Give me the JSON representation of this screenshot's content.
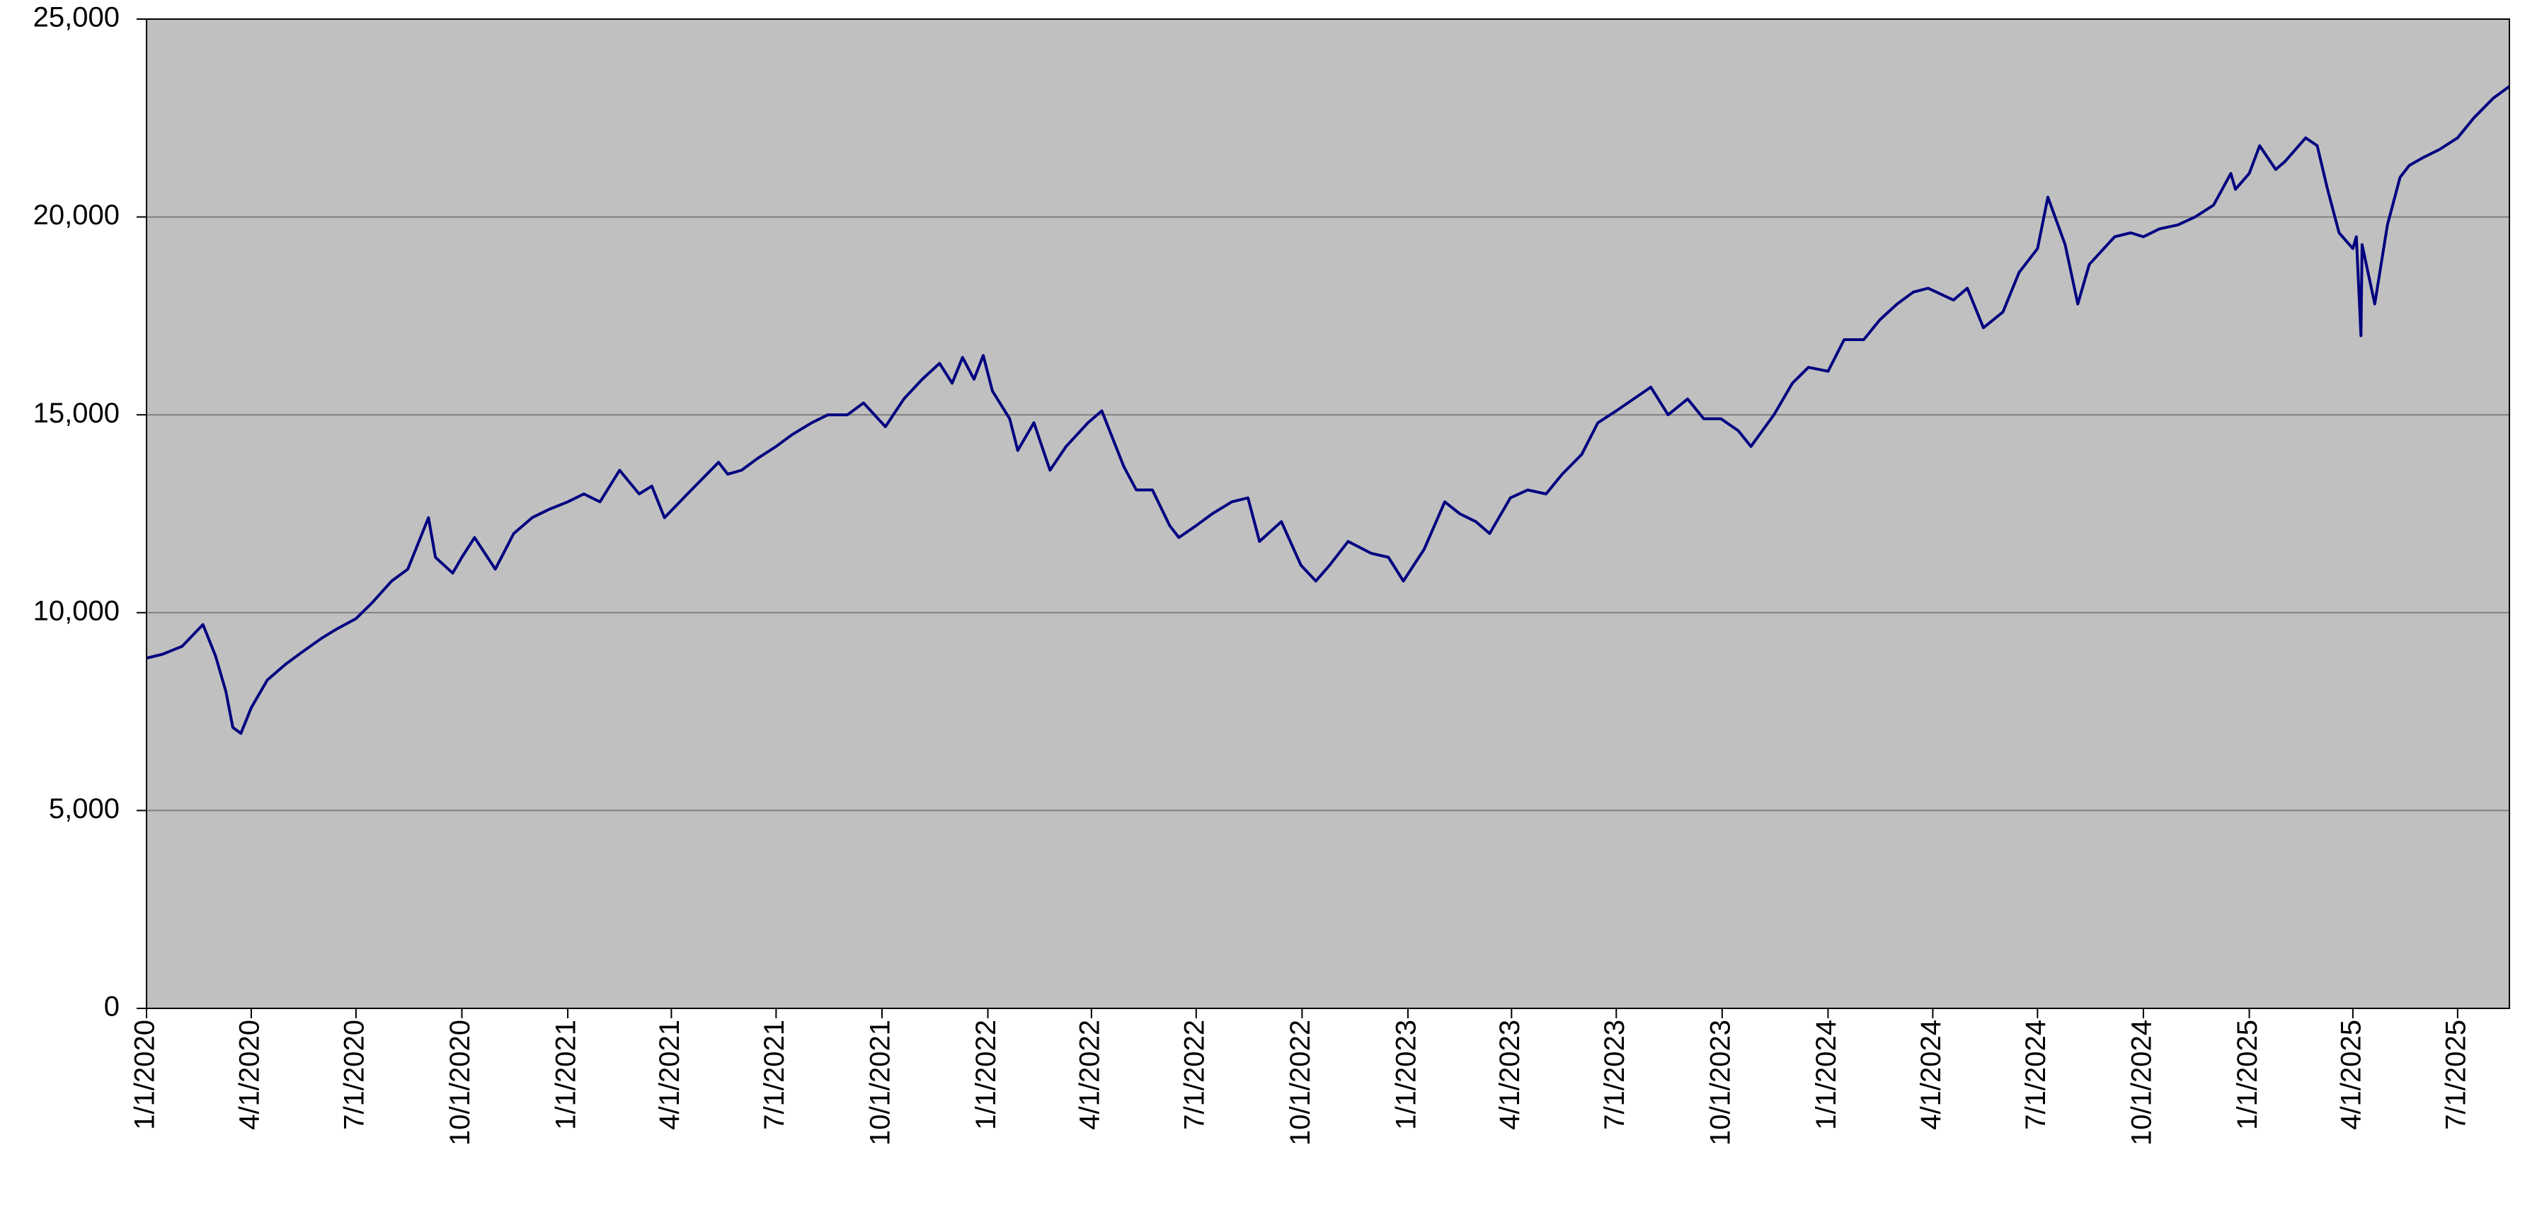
{
  "chart_data": {
    "type": "line",
    "title": "",
    "xlabel": "",
    "ylabel": "",
    "x_range": [
      "1/1/2020",
      "8/15/2025"
    ],
    "ylim": [
      0,
      25000
    ],
    "grid": {
      "horizontal": true,
      "vertical": false
    },
    "legend": "none",
    "colors": {
      "plot_background": "#c0c0c0",
      "line": "#000080",
      "gridline": "#808080",
      "axis": "#000000"
    },
    "y_ticks": [
      0,
      5000,
      10000,
      15000,
      20000,
      25000
    ],
    "y_tick_labels": [
      "0",
      "5,000",
      "10,000",
      "15,000",
      "20,000",
      "25,000"
    ],
    "x_ticks": [
      "2020-01-01",
      "2020-04-01",
      "2020-07-01",
      "2020-10-01",
      "2021-01-01",
      "2021-04-01",
      "2021-07-01",
      "2021-10-01",
      "2022-01-01",
      "2022-04-01",
      "2022-07-01",
      "2022-10-01",
      "2023-01-01",
      "2023-04-01",
      "2023-07-01",
      "2023-10-01",
      "2024-01-01",
      "2024-04-01",
      "2024-07-01",
      "2024-10-01",
      "2025-01-01",
      "2025-04-01",
      "2025-07-01"
    ],
    "x_tick_labels": [
      "1/1/2020",
      "4/1/2020",
      "7/1/2020",
      "10/1/2020",
      "1/1/2021",
      "4/1/2021",
      "7/1/2021",
      "10/1/2021",
      "1/1/2022",
      "4/1/2022",
      "7/1/2022",
      "10/1/2022",
      "1/1/2023",
      "4/1/2023",
      "7/1/2023",
      "10/1/2023",
      "1/1/2024",
      "4/1/2024",
      "7/1/2024",
      "10/1/2024",
      "1/1/2025",
      "4/1/2025",
      "7/1/2025"
    ],
    "series": [
      {
        "x": [
          "2020-01-01",
          "2020-01-15",
          "2020-02-01",
          "2020-02-19",
          "2020-03-01",
          "2020-03-10",
          "2020-03-16",
          "2020-03-23",
          "2020-04-01",
          "2020-04-15",
          "2020-05-01",
          "2020-05-15",
          "2020-06-01",
          "2020-06-15",
          "2020-07-01",
          "2020-07-15",
          "2020-08-01",
          "2020-08-15",
          "2020-09-02",
          "2020-09-08",
          "2020-09-23",
          "2020-10-01",
          "2020-10-12",
          "2020-10-30",
          "2020-11-15",
          "2020-12-01",
          "2020-12-15",
          "2021-01-01",
          "2021-01-15",
          "2021-01-29",
          "2021-02-15",
          "2021-03-04",
          "2021-03-15",
          "2021-03-26",
          "2021-04-15",
          "2021-05-12",
          "2021-05-20",
          "2021-06-01",
          "2021-06-15",
          "2021-07-01",
          "2021-07-15",
          "2021-08-01",
          "2021-08-15",
          "2021-09-01",
          "2021-09-15",
          "2021-10-04",
          "2021-10-20",
          "2021-11-05",
          "2021-11-20",
          "2021-12-01",
          "2021-12-10",
          "2021-12-20",
          "2021-12-28",
          "2022-01-05",
          "2022-01-20",
          "2022-01-27",
          "2022-02-10",
          "2022-02-24",
          "2022-03-10",
          "2022-03-29",
          "2022-04-10",
          "2022-04-29",
          "2022-05-10",
          "2022-05-24",
          "2022-06-08",
          "2022-06-16",
          "2022-07-01",
          "2022-07-15",
          "2022-08-01",
          "2022-08-15",
          "2022-08-25",
          "2022-09-13",
          "2022-09-30",
          "2022-10-13",
          "2022-10-25",
          "2022-11-10",
          "2022-11-30",
          "2022-12-15",
          "2022-12-28",
          "2023-01-15",
          "2023-02-02",
          "2023-02-15",
          "2023-03-01",
          "2023-03-13",
          "2023-03-31",
          "2023-04-15",
          "2023-05-01",
          "2023-05-15",
          "2023-06-01",
          "2023-06-15",
          "2023-07-01",
          "2023-07-31",
          "2023-08-15",
          "2023-09-01",
          "2023-09-15",
          "2023-09-30",
          "2023-10-15",
          "2023-10-26",
          "2023-11-15",
          "2023-12-01",
          "2023-12-15",
          "2024-01-01",
          "2024-01-15",
          "2024-02-01",
          "2024-02-15",
          "2024-03-01",
          "2024-03-15",
          "2024-03-28",
          "2024-04-19",
          "2024-05-01",
          "2024-05-15",
          "2024-06-01",
          "2024-06-15",
          "2024-07-01",
          "2024-07-10",
          "2024-07-25",
          "2024-08-05",
          "2024-08-15",
          "2024-09-06",
          "2024-09-20",
          "2024-10-01",
          "2024-10-15",
          "2024-10-31",
          "2024-11-15",
          "2024-12-01",
          "2024-12-16",
          "2024-12-20",
          "2025-01-01",
          "2025-01-10",
          "2025-01-24",
          "2025-02-01",
          "2025-02-19",
          "2025-03-01",
          "2025-03-10",
          "2025-03-20",
          "2025-04-01",
          "2025-04-04",
          "2025-04-08",
          "2025-04-09",
          "2025-04-20",
          "2025-05-01",
          "2025-05-12",
          "2025-05-20",
          "2025-06-01",
          "2025-06-15",
          "2025-07-01",
          "2025-07-15",
          "2025-08-01",
          "2025-08-15"
        ],
        "values": [
          8850,
          8950,
          9150,
          9700,
          8900,
          8000,
          7100,
          6950,
          7600,
          8300,
          8700,
          9000,
          9350,
          9600,
          9850,
          10250,
          10800,
          11100,
          12400,
          11400,
          11000,
          11400,
          11900,
          11100,
          12000,
          12400,
          12600,
          12800,
          13000,
          12800,
          13600,
          13000,
          13200,
          12400,
          13000,
          13800,
          13500,
          13600,
          13900,
          14200,
          14500,
          14800,
          15000,
          15000,
          15300,
          14700,
          15400,
          15900,
          16300,
          15800,
          16450,
          15900,
          16500,
          15600,
          14900,
          14100,
          14800,
          13600,
          14200,
          14800,
          15100,
          13700,
          13100,
          13100,
          12200,
          11900,
          12200,
          12500,
          12800,
          12900,
          11800,
          12300,
          11200,
          10800,
          11200,
          11800,
          11500,
          11400,
          10800,
          11600,
          12800,
          12500,
          12300,
          12000,
          12900,
          13100,
          13000,
          13500,
          14000,
          14800,
          15100,
          15700,
          15000,
          15400,
          14900,
          14900,
          14600,
          14200,
          15000,
          15800,
          16200,
          16100,
          16900,
          16900,
          17400,
          17800,
          18100,
          18200,
          17900,
          18200,
          17200,
          17600,
          18600,
          19200,
          20500,
          19300,
          17800,
          18800,
          19500,
          19600,
          19500,
          19700,
          19800,
          20000,
          20300,
          21100,
          20700,
          21100,
          21800,
          21200,
          21400,
          22000,
          21800,
          20700,
          19600,
          19200,
          19500,
          17000,
          19300,
          17800,
          19800,
          21000,
          21300,
          21500,
          21700,
          22000,
          22500,
          23000,
          23300
        ]
      }
    ]
  }
}
